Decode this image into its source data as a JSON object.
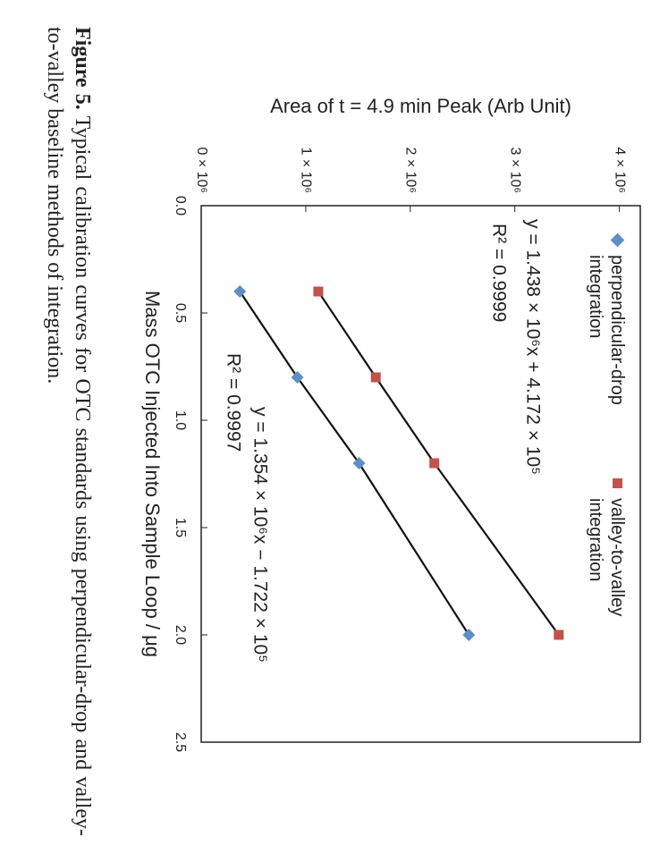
{
  "chart_data": {
    "type": "scatter",
    "ylabel": "Area of t = 4.9 min Peak (Arb Unit)",
    "xlabel": "Mass OTC Injected Into Sample Loop / μg",
    "x": [
      0.4,
      0.8,
      1.2,
      2.0
    ],
    "series": [
      {
        "name": "perpendicular-drop integration",
        "color": "#5b8fc7",
        "marker": "diamond",
        "values": [
          370000,
          920000,
          1510000,
          2560000
        ]
      },
      {
        "name": "valley-to-valley integration",
        "color": "#c4524a",
        "marker": "square",
        "values": [
          1120000,
          1670000,
          2230000,
          3420000
        ]
      }
    ],
    "xlim": [
      0,
      2.5
    ],
    "xticks": [
      {
        "value": 0,
        "label": "0.0"
      },
      0.5,
      {
        "value": 1,
        "label": "1.0"
      },
      1.5,
      {
        "value": 2,
        "label": "2.0"
      },
      2.5
    ],
    "ylim": [
      0,
      4200000
    ],
    "yticks": [
      {
        "value": 0,
        "label": "0 × 10⁶"
      },
      {
        "value": 1000000,
        "label": "1 × 10⁶"
      },
      {
        "value": 2000000,
        "label": "2 × 10⁶"
      },
      {
        "value": 3000000,
        "label": "3 × 10⁶"
      },
      {
        "value": 4000000,
        "label": "4 × 10⁶"
      }
    ],
    "annotations": [
      "y = 1.438 × 10⁶x + 4.172 × 10⁵",
      "R² = 0.9999",
      "y = 1.354 × 10⁶x − 1.722 × 10⁵",
      "R² = 0.9997"
    ],
    "fit_line_color": "#111111"
  },
  "caption": {
    "label": "Figure 5.",
    "text": "Typical calibration curves for OTC standards using perpendicular-drop and valley-to-valley baseline methods of integration."
  }
}
